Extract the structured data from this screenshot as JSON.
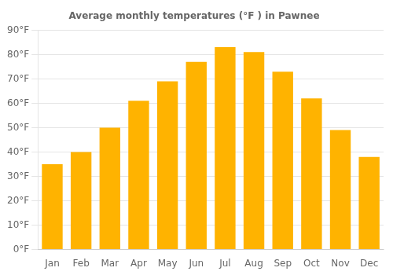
{
  "chart_data": {
    "type": "bar",
    "title": "Average monthly temperatures (°F ) in Pawnee",
    "categories": [
      "Jan",
      "Feb",
      "Mar",
      "Apr",
      "May",
      "Jun",
      "Jul",
      "Aug",
      "Sep",
      "Oct",
      "Nov",
      "Dec"
    ],
    "values": [
      35,
      40,
      50,
      61,
      69,
      77,
      83,
      81,
      73,
      62,
      49,
      38
    ],
    "color": "#FFB300",
    "ylim": [
      0,
      90
    ],
    "yticks": [
      {
        "value": 0,
        "label": "0°F"
      },
      {
        "value": 10,
        "label": "10°F"
      },
      {
        "value": 20,
        "label": "20°F"
      },
      {
        "value": 30,
        "label": "30°F"
      },
      {
        "value": 40,
        "label": "40°F"
      },
      {
        "value": 50,
        "label": "50°F"
      },
      {
        "value": 60,
        "label": "60°F"
      },
      {
        "value": 70,
        "label": "70°F"
      },
      {
        "value": 80,
        "label": "80°F"
      },
      {
        "value": 90,
        "label": "90°F"
      }
    ],
    "grid": true
  }
}
